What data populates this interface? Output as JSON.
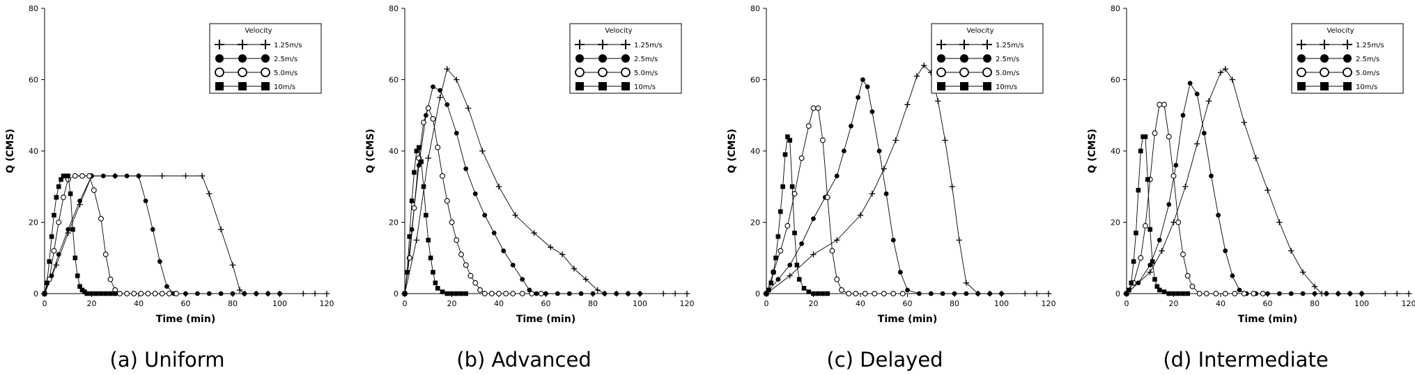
{
  "chart_data": [
    {
      "type": "line",
      "caption": "(a)  Uniform",
      "xlabel": "Time (min)",
      "ylabel": "Q (CMS)",
      "xlim": [
        0,
        120
      ],
      "ylim": [
        0,
        80
      ],
      "xticks": [
        0,
        20,
        40,
        60,
        80,
        100,
        120
      ],
      "yticks": [
        0,
        20,
        40,
        60,
        80
      ],
      "legend": {
        "title": "Velocity",
        "position": "top-right"
      },
      "series": [
        {
          "name": "1.25m/s",
          "marker": "plus",
          "x": [
            0,
            5,
            10,
            15,
            20,
            30,
            40,
            50,
            60,
            67,
            70,
            75,
            80,
            83,
            85,
            90,
            95,
            100,
            110,
            115,
            120
          ],
          "y": [
            0,
            8,
            17,
            25,
            33,
            33,
            33,
            33,
            33,
            33,
            28,
            18,
            8,
            1,
            0,
            0,
            0,
            0,
            0,
            0,
            0
          ]
        },
        {
          "name": "2.5m/s",
          "marker": "filled-circle",
          "x": [
            0,
            3,
            6,
            10,
            15,
            20,
            25,
            30,
            35,
            40,
            43,
            46,
            49,
            52,
            55,
            60,
            65,
            70,
            75,
            80,
            85,
            90,
            95,
            100
          ],
          "y": [
            0,
            5,
            11,
            18,
            26,
            33,
            33,
            33,
            33,
            33,
            26,
            18,
            9,
            2,
            0,
            0,
            0,
            0,
            0,
            0,
            0,
            0,
            0,
            0
          ]
        },
        {
          "name": "5.0m/s",
          "marker": "open-circle",
          "x": [
            0,
            2,
            4,
            6,
            8,
            10,
            13,
            16,
            19,
            21,
            24,
            26,
            28,
            30,
            32,
            35,
            38,
            41,
            44,
            47,
            50,
            53,
            56
          ],
          "y": [
            0,
            4,
            12,
            20,
            27,
            32,
            33,
            33,
            33,
            29,
            21,
            11,
            4,
            1,
            0,
            0,
            0,
            0,
            0,
            0,
            0,
            0,
            0
          ]
        },
        {
          "name": "10m/s",
          "marker": "filled-square",
          "x": [
            0,
            1,
            2,
            3,
            4,
            5,
            6,
            7,
            8,
            9,
            10,
            11,
            12,
            13,
            14,
            15,
            16,
            17,
            18,
            20,
            22,
            24,
            26,
            28,
            30
          ],
          "y": [
            0,
            3,
            9,
            16,
            22,
            27,
            30,
            32,
            33,
            33,
            33,
            28,
            18,
            10,
            5,
            2,
            1,
            0.5,
            0,
            0,
            0,
            0,
            0,
            0,
            0
          ]
        }
      ]
    },
    {
      "type": "line",
      "caption": "(b)  Advanced",
      "xlabel": "Time (min)",
      "ylabel": "Q (CMS)",
      "xlim": [
        0,
        120
      ],
      "ylim": [
        0,
        80
      ],
      "xticks": [
        0,
        20,
        40,
        60,
        80,
        100,
        120
      ],
      "yticks": [
        0,
        20,
        40,
        60,
        80
      ],
      "legend": {
        "title": "Velocity",
        "position": "top-right"
      },
      "series": [
        {
          "name": "1.25m/s",
          "marker": "plus",
          "x": [
            0,
            5,
            10,
            15,
            18,
            22,
            27,
            33,
            40,
            47,
            55,
            62,
            67,
            72,
            77,
            82,
            85,
            90,
            95,
            100,
            110,
            115,
            120
          ],
          "y": [
            0,
            15,
            38,
            55,
            63,
            60,
            52,
            40,
            30,
            22,
            17,
            13,
            11,
            7,
            4,
            1,
            0,
            0,
            0,
            0,
            0,
            0,
            0
          ]
        },
        {
          "name": "2.5m/s",
          "marker": "filled-circle",
          "x": [
            0,
            3,
            6,
            9,
            12,
            15,
            18,
            22,
            26,
            30,
            34,
            38,
            42,
            46,
            50,
            53,
            56,
            60,
            65,
            70,
            75,
            80,
            85,
            90,
            95,
            100
          ],
          "y": [
            0,
            18,
            36,
            50,
            58,
            57,
            53,
            45,
            35,
            28,
            22,
            17,
            12,
            8,
            4,
            1,
            0,
            0,
            0,
            0,
            0,
            0,
            0,
            0,
            0,
            0
          ]
        },
        {
          "name": "5.0m/s",
          "marker": "open-circle",
          "x": [
            0,
            2,
            4,
            6,
            8,
            10,
            12,
            14,
            16,
            18,
            20,
            22,
            24,
            26,
            28,
            30,
            32,
            34,
            37,
            40,
            43,
            46,
            50,
            54,
            58
          ],
          "y": [
            0,
            10,
            24,
            38,
            48,
            52,
            49,
            41,
            33,
            26,
            20,
            15,
            11,
            8,
            5,
            3,
            1,
            0,
            0,
            0,
            0,
            0,
            0,
            0,
            0
          ]
        },
        {
          "name": "10m/s",
          "marker": "filled-square",
          "x": [
            0,
            1,
            2,
            3,
            4,
            5,
            6,
            7,
            8,
            9,
            10,
            11,
            12,
            13,
            14,
            16,
            18,
            20,
            22,
            24,
            26
          ],
          "y": [
            0,
            6,
            16,
            26,
            34,
            40,
            41,
            37,
            30,
            22,
            15,
            10,
            6,
            3,
            1.5,
            0.5,
            0,
            0,
            0,
            0,
            0
          ]
        }
      ]
    },
    {
      "type": "line",
      "caption": "(c)  Delayed",
      "xlabel": "Time (min)",
      "ylabel": "Q (CMS)",
      "xlim": [
        0,
        120
      ],
      "ylim": [
        0,
        80
      ],
      "xticks": [
        0,
        20,
        40,
        60,
        80,
        100,
        120
      ],
      "yticks": [
        0,
        20,
        40,
        60,
        80
      ],
      "legend": {
        "title": "Velocity",
        "position": "top-right"
      },
      "series": [
        {
          "name": "1.25m/s",
          "marker": "plus",
          "x": [
            0,
            10,
            20,
            30,
            40,
            45,
            50,
            55,
            60,
            64,
            67,
            70,
            73,
            76,
            79,
            82,
            85,
            90,
            95,
            100,
            110,
            115,
            120
          ],
          "y": [
            0,
            5,
            11,
            15,
            22,
            28,
            35,
            43,
            53,
            61,
            64,
            62,
            54,
            43,
            30,
            15,
            3,
            0,
            0,
            0,
            0,
            0,
            0
          ]
        },
        {
          "name": "2.5m/s",
          "marker": "filled-circle",
          "x": [
            0,
            5,
            10,
            15,
            20,
            25,
            30,
            33,
            36,
            39,
            41,
            43,
            45,
            48,
            51,
            54,
            57,
            60,
            65,
            70,
            75,
            80,
            85,
            90,
            95,
            100
          ],
          "y": [
            0,
            4,
            8,
            14,
            21,
            27,
            33,
            40,
            47,
            55,
            60,
            58,
            51,
            40,
            28,
            15,
            6,
            1,
            0,
            0,
            0,
            0,
            0,
            0,
            0,
            0
          ]
        },
        {
          "name": "5.0m/s",
          "marker": "open-circle",
          "x": [
            0,
            3,
            6,
            9,
            12,
            15,
            18,
            20,
            22,
            24,
            26,
            28,
            30,
            32,
            35,
            38,
            42,
            46,
            50,
            54,
            58
          ],
          "y": [
            0,
            6,
            12,
            19,
            28,
            38,
            47,
            52,
            52,
            43,
            27,
            12,
            4,
            1,
            0,
            0,
            0,
            0,
            0,
            0,
            0
          ]
        },
        {
          "name": "10m/s",
          "marker": "filled-square",
          "x": [
            0,
            1,
            2,
            3,
            4,
            5,
            6,
            7,
            8,
            9,
            10,
            11,
            12,
            13,
            14,
            16,
            18,
            20,
            22,
            24,
            26
          ],
          "y": [
            0,
            1,
            3,
            6,
            10,
            16,
            23,
            30,
            39,
            44,
            43,
            30,
            17,
            8,
            4,
            1.5,
            0.5,
            0,
            0,
            0,
            0
          ]
        }
      ]
    },
    {
      "type": "line",
      "caption": "(d)  Intermediate",
      "xlabel": "Time (min)",
      "ylabel": "Q (CMS)",
      "xlim": [
        0,
        120
      ],
      "ylim": [
        0,
        80
      ],
      "xticks": [
        0,
        20,
        40,
        60,
        80,
        100,
        120
      ],
      "yticks": [
        0,
        20,
        40,
        60,
        80
      ],
      "legend": {
        "title": "Velocity",
        "position": "top-right"
      },
      "series": [
        {
          "name": "1.25m/s",
          "marker": "plus",
          "x": [
            0,
            10,
            15,
            20,
            25,
            30,
            35,
            40,
            42,
            45,
            50,
            55,
            60,
            65,
            70,
            75,
            80,
            83,
            85,
            90,
            95,
            100,
            110,
            115,
            120
          ],
          "y": [
            0,
            6,
            12,
            20,
            30,
            42,
            54,
            62,
            63,
            60,
            48,
            38,
            29,
            20,
            12,
            6,
            2,
            0,
            0,
            0,
            0,
            0,
            0,
            0,
            0
          ]
        },
        {
          "name": "2.5m/s",
          "marker": "filled-circle",
          "x": [
            0,
            5,
            10,
            14,
            18,
            21,
            24,
            27,
            30,
            33,
            36,
            39,
            42,
            45,
            48,
            51,
            55,
            60,
            65,
            70,
            75,
            80,
            85,
            90,
            95,
            100
          ],
          "y": [
            0,
            3,
            8,
            15,
            25,
            36,
            50,
            59,
            56,
            45,
            33,
            22,
            12,
            5,
            1,
            0,
            0,
            0,
            0,
            0,
            0,
            0,
            0,
            0,
            0,
            0
          ]
        },
        {
          "name": "5.0m/s",
          "marker": "open-circle",
          "x": [
            0,
            3,
            6,
            8,
            10,
            12,
            14,
            16,
            18,
            20,
            22,
            24,
            26,
            28,
            31,
            34,
            38,
            42,
            46,
            50,
            54,
            58
          ],
          "y": [
            0,
            3,
            10,
            19,
            32,
            45,
            53,
            53,
            44,
            33,
            20,
            11,
            5,
            2,
            0,
            0,
            0,
            0,
            0,
            0,
            0,
            0
          ]
        },
        {
          "name": "10m/s",
          "marker": "filled-square",
          "x": [
            0,
            1,
            2,
            3,
            4,
            5,
            6,
            7,
            8,
            9,
            10,
            11,
            12,
            13,
            14,
            16,
            18,
            20,
            22,
            24,
            26
          ],
          "y": [
            0,
            1,
            3,
            9,
            17,
            29,
            40,
            44,
            44,
            32,
            18,
            9,
            4,
            2,
            1,
            0.5,
            0,
            0,
            0,
            0,
            0
          ]
        }
      ]
    }
  ]
}
